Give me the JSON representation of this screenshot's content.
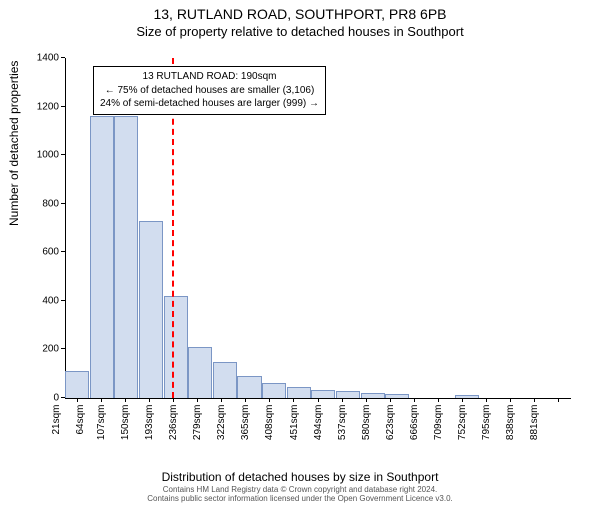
{
  "title_main": "13, RUTLAND ROAD, SOUTHPORT, PR8 6PB",
  "title_sub": "Size of property relative to detached houses in Southport",
  "chart": {
    "type": "histogram",
    "ylim": [
      0,
      1400
    ],
    "ytick_step": 200,
    "yticks": [
      0,
      200,
      400,
      600,
      800,
      1000,
      1200,
      1400
    ],
    "ylabel": "Number of detached properties",
    "xlabel": "Distribution of detached houses by size in Southport",
    "bar_fill": "#d2ddef",
    "bar_stroke": "#7b96c5",
    "background": "#ffffff",
    "marker_color": "#ff0000",
    "marker_position": 190,
    "categories": [
      "21sqm",
      "64sqm",
      "107sqm",
      "150sqm",
      "193sqm",
      "236sqm",
      "279sqm",
      "322sqm",
      "365sqm",
      "408sqm",
      "451sqm",
      "494sqm",
      "537sqm",
      "580sqm",
      "623sqm",
      "666sqm",
      "709sqm",
      "752sqm",
      "795sqm",
      "838sqm",
      "881sqm"
    ],
    "values": [
      110,
      1160,
      1160,
      730,
      420,
      210,
      150,
      90,
      60,
      45,
      35,
      28,
      22,
      15,
      0,
      0,
      12,
      0,
      0,
      0,
      0
    ]
  },
  "annotation": {
    "line1": "13 RUTLAND ROAD: 190sqm",
    "line2": "← 75% of detached houses are smaller (3,106)",
    "line3": "24% of semi-detached houses are larger (999) →"
  },
  "attribution": {
    "line1": "Contains HM Land Registry data © Crown copyright and database right 2024.",
    "line2": "Contains public sector information licensed under the Open Government Licence v3.0."
  }
}
